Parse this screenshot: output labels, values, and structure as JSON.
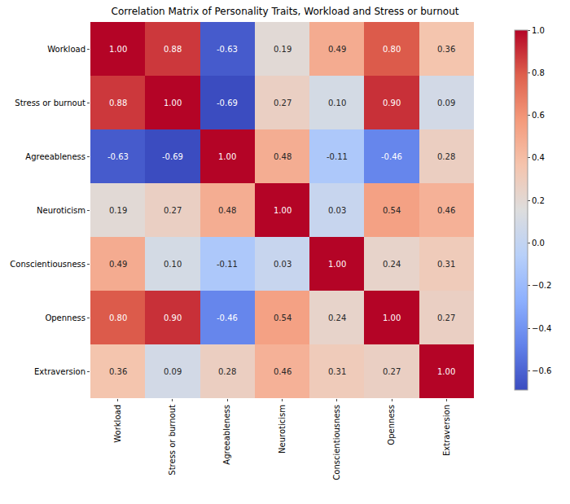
{
  "chart_data": {
    "type": "heatmap",
    "title": "Correlation Matrix of Personality Traits, Workload and Stress or burnout",
    "categories": [
      "Workload",
      "Stress or burnout",
      "Agreeableness",
      "Neuroticism",
      "Conscientiousness",
      "Openness",
      "Extraversion"
    ],
    "values": [
      [
        1.0,
        0.88,
        -0.63,
        0.19,
        0.49,
        0.8,
        0.36
      ],
      [
        0.88,
        1.0,
        -0.69,
        0.27,
        0.1,
        0.9,
        0.09
      ],
      [
        -0.63,
        -0.69,
        1.0,
        0.48,
        -0.11,
        -0.46,
        0.28
      ],
      [
        0.19,
        0.27,
        0.48,
        1.0,
        0.03,
        0.54,
        0.46
      ],
      [
        0.49,
        0.1,
        -0.11,
        0.03,
        1.0,
        0.24,
        0.31
      ],
      [
        0.8,
        0.9,
        -0.46,
        0.54,
        0.24,
        1.0,
        0.27
      ],
      [
        0.36,
        0.09,
        0.28,
        0.46,
        0.31,
        0.27,
        1.0
      ]
    ],
    "value_labels": [
      [
        "1.00",
        "0.88",
        "-0.63",
        "0.19",
        "0.49",
        "0.80",
        "0.36"
      ],
      [
        "0.88",
        "1.00",
        "-0.69",
        "0.27",
        "0.10",
        "0.90",
        "0.09"
      ],
      [
        "-0.63",
        "-0.69",
        "1.00",
        "0.48",
        "-0.11",
        "-0.46",
        "0.28"
      ],
      [
        "0.19",
        "0.27",
        "0.48",
        "1.00",
        "0.03",
        "0.54",
        "0.46"
      ],
      [
        "0.49",
        "0.10",
        "-0.11",
        "0.03",
        "1.00",
        "0.24",
        "0.31"
      ],
      [
        "0.80",
        "0.90",
        "-0.46",
        "0.54",
        "0.24",
        "1.00",
        "0.27"
      ],
      [
        "0.36",
        "0.09",
        "0.28",
        "0.46",
        "0.31",
        "0.27",
        "1.00"
      ]
    ],
    "data_labels": true,
    "color": "coolwarm",
    "colorbar_range": [
      -0.69,
      1.0
    ],
    "colorbar_ticks": [
      {
        "value": -0.6,
        "label": "−0.6"
      },
      {
        "value": -0.4,
        "label": "−0.4"
      },
      {
        "value": -0.2,
        "label": "−0.2"
      },
      {
        "value": 0.0,
        "label": "0.0"
      },
      0.2,
      0.4,
      0.6,
      0.8,
      {
        "value": 1.0,
        "label": "1.0"
      }
    ]
  }
}
